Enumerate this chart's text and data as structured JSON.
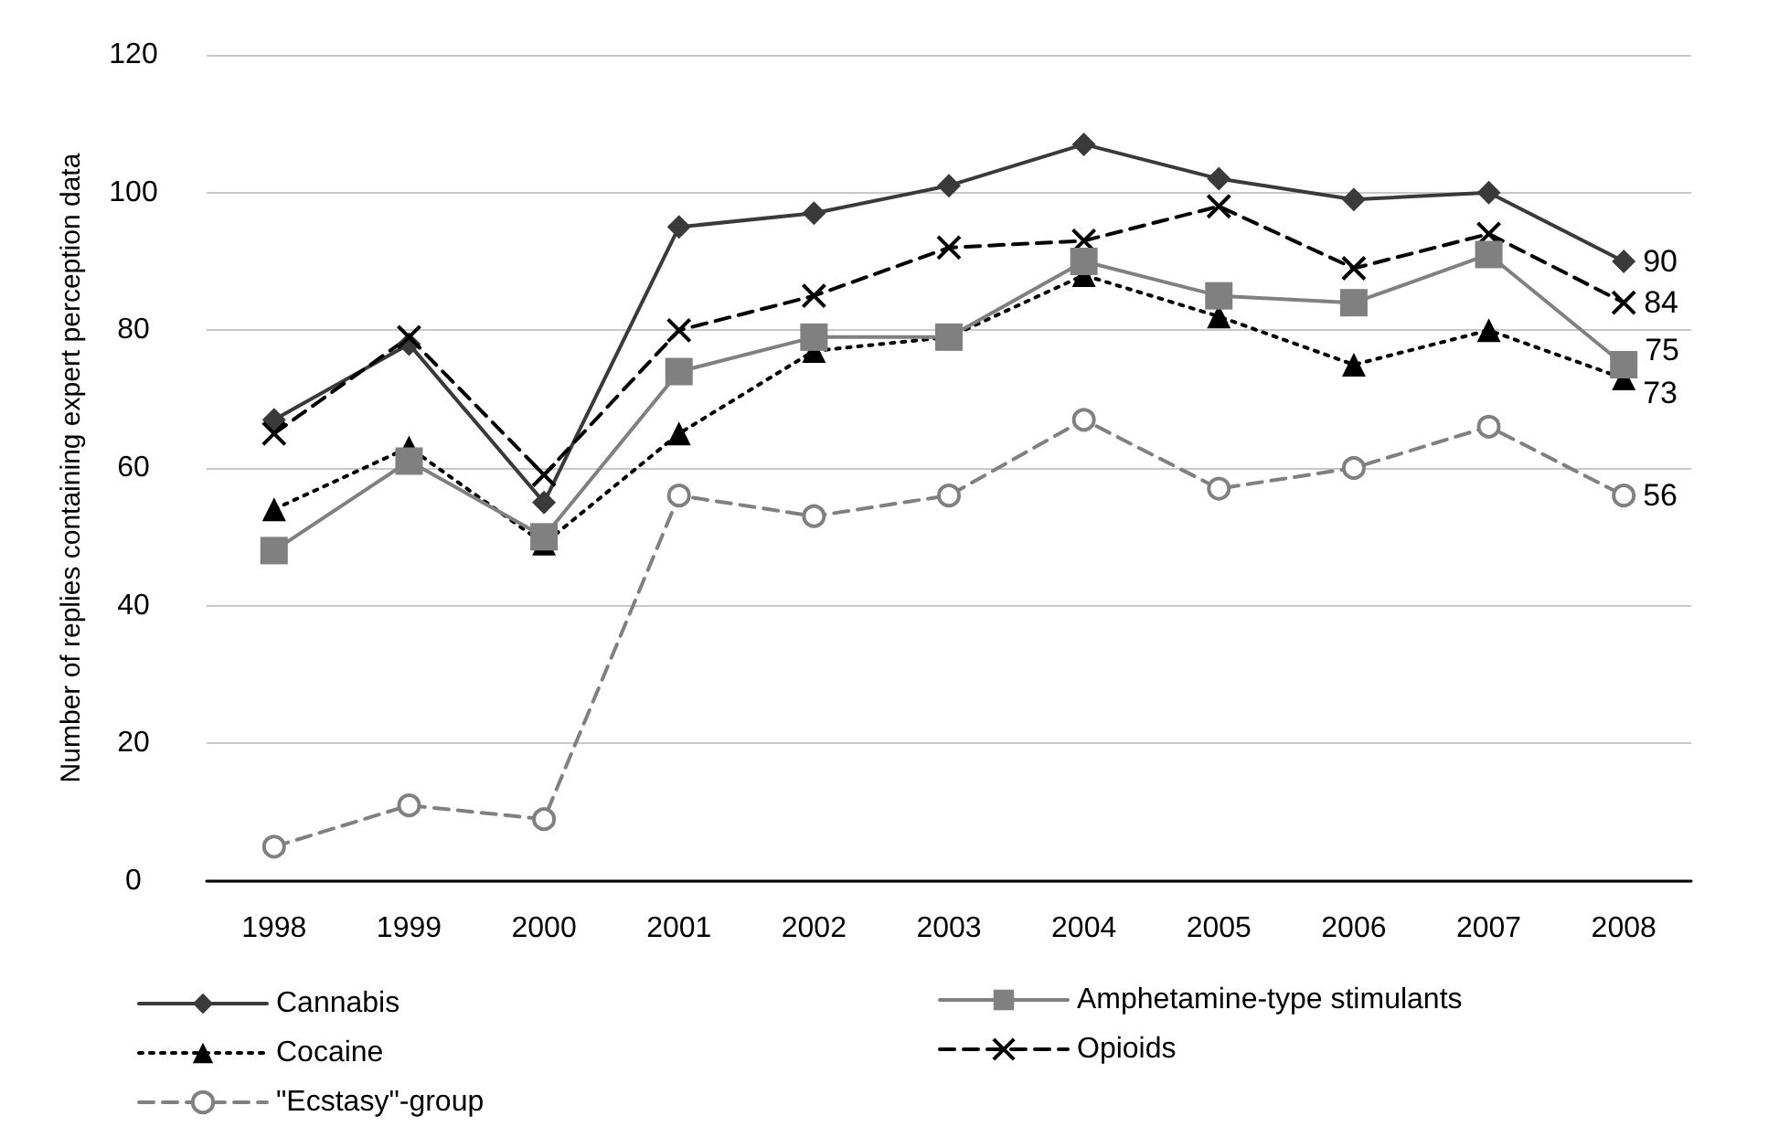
{
  "chart_data": {
    "type": "line",
    "ylabel": "Number of replies containing expert perception data",
    "categories": [
      "1998",
      "1999",
      "2000",
      "2001",
      "2002",
      "2003",
      "2004",
      "2005",
      "2006",
      "2007",
      "2008"
    ],
    "series": [
      {
        "name": "Cannabis",
        "color": "#3a3a3a",
        "marker": "diamond",
        "line_style": "solid",
        "values": [
          67,
          78,
          55,
          95,
          97,
          101,
          107,
          102,
          99,
          100,
          90
        ],
        "value_labels": [
          null,
          null,
          null,
          null,
          null,
          null,
          null,
          null,
          null,
          null,
          "90"
        ]
      },
      {
        "name": "Amphetamine-type stimulants",
        "color": "#808080",
        "marker": "square",
        "line_style": "solid",
        "values": [
          48,
          61,
          50,
          74,
          79,
          79,
          90,
          85,
          84,
          91,
          75
        ],
        "value_labels": [
          null,
          null,
          null,
          null,
          null,
          null,
          null,
          null,
          null,
          null,
          "75"
        ]
      },
      {
        "name": "Cocaine",
        "color": "#000000",
        "marker": "triangle",
        "line_style": "dotted",
        "values": [
          54,
          63,
          49,
          65,
          77,
          79,
          88,
          82,
          75,
          80,
          73
        ],
        "value_labels": [
          null,
          null,
          null,
          null,
          null,
          null,
          null,
          null,
          null,
          null,
          "73"
        ]
      },
      {
        "name": "Opioids",
        "color": "#000000",
        "marker": "cross",
        "line_style": "dashed",
        "values": [
          65,
          79,
          59,
          80,
          85,
          92,
          93,
          98,
          89,
          94,
          84
        ],
        "value_labels": [
          null,
          null,
          null,
          null,
          null,
          null,
          null,
          null,
          null,
          null,
          "84"
        ]
      },
      {
        "name": "\"Ecstasy\"-group",
        "color": "#808080",
        "marker": "circle",
        "line_style": "dashed",
        "values": [
          5,
          11,
          9,
          56,
          53,
          56,
          67,
          57,
          60,
          66,
          56
        ],
        "value_labels": [
          null,
          null,
          null,
          null,
          null,
          null,
          null,
          null,
          null,
          null,
          "56"
        ]
      }
    ],
    "ylim": [
      0,
      120
    ],
    "yticks": [
      0,
      20,
      40,
      60,
      80,
      100,
      120
    ],
    "grid": "y",
    "legend": "bottom"
  }
}
